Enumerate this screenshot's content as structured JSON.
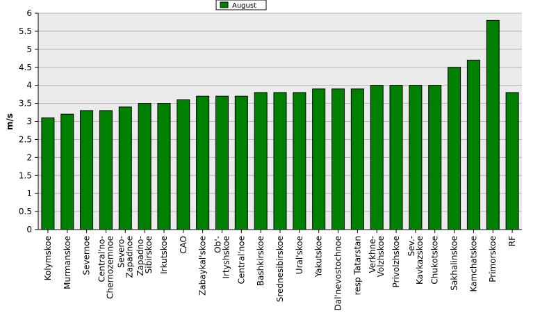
{
  "chart_data": {
    "type": "bar",
    "title": "",
    "xlabel": "",
    "ylabel": "m/s",
    "ylim": [
      0,
      6
    ],
    "yticks": [
      0,
      0.5,
      1,
      1.5,
      2,
      2.5,
      3,
      3.5,
      4,
      4.5,
      5,
      5.5,
      6
    ],
    "grid": true,
    "legend_position": "top-center",
    "colors": {
      "bar": "#008000",
      "bar_edge": "#000000",
      "plot_bg": "#ebebeb",
      "grid": "#b4b4b4"
    },
    "categories": [
      "Kolymskoe",
      "Murmanskoe",
      "Severnoe",
      "Central'no-Chernozemnoe",
      "Severo-Zapadnoe",
      "Zapadno-Sibirskoe",
      "Irkutskoe",
      "CAO",
      "Zabaykal'skoe",
      "Ob'-Irtyshskoe",
      "Central'noe",
      "Bashkirskoe",
      "Srednesibirskoe",
      "Ural'skoe",
      "Yakutskoe",
      "Dal'nevostochnoe",
      "resp Tatarstan",
      "Verkhne-Volzhskoe",
      "Privolzhskoe",
      "Sev.-Kavkazskoe",
      "Chukotskoe",
      "Sakhalinskoe",
      "Kamchatskoe",
      "Primorskoe",
      "RF"
    ],
    "series": [
      {
        "name": "August",
        "values": [
          3.1,
          3.2,
          3.3,
          3.3,
          3.4,
          3.5,
          3.5,
          3.6,
          3.7,
          3.7,
          3.7,
          3.8,
          3.8,
          3.8,
          3.9,
          3.9,
          3.9,
          4.0,
          4.0,
          4.0,
          4.0,
          4.5,
          4.7,
          5.8,
          3.8
        ]
      }
    ],
    "tick_labels": [
      [
        "Kolymskoe"
      ],
      [
        "Murmanskoe"
      ],
      [
        "Severnoe"
      ],
      [
        "Central'no-",
        "Chernozemnoe"
      ],
      [
        "Severo-",
        "Zapadnoe"
      ],
      [
        "Zapadno-",
        "Sibirskoe"
      ],
      [
        "Irkutskoe"
      ],
      [
        "CAO"
      ],
      [
        "Zabaykal'skoe"
      ],
      [
        "Ob'-",
        "Irtyshskoe"
      ],
      [
        "Central'noe"
      ],
      [
        "Bashkirskoe"
      ],
      [
        "Srednesibirskoe"
      ],
      [
        "Ural'skoe"
      ],
      [
        "Yakutskoe"
      ],
      [
        "Dal'nevostochnoe"
      ],
      [
        "resp Tatarstan"
      ],
      [
        "Verkhne-",
        "Volzhskoe"
      ],
      [
        "Privolzhskoe"
      ],
      [
        "Sev.-",
        "Kavkazskoe"
      ],
      [
        "Chukotskoe"
      ],
      [
        "Sakhalinskoe"
      ],
      [
        "Kamchatskoe"
      ],
      [
        "Primorskoe"
      ],
      [
        "RF"
      ]
    ]
  }
}
